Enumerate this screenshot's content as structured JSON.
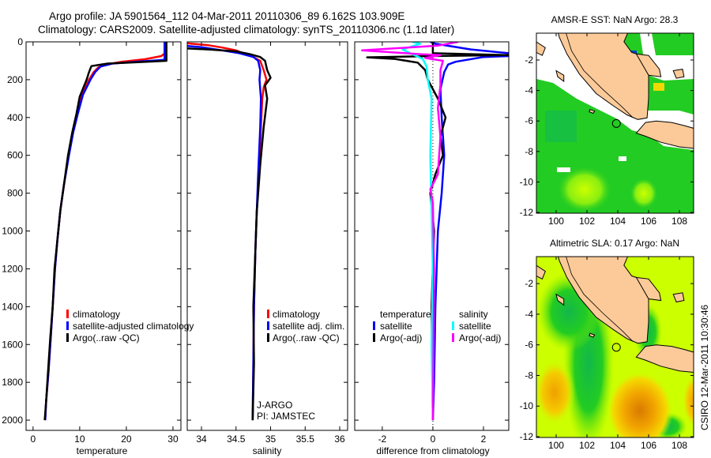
{
  "title": {
    "line1": "Argo profile: JA 5901564_112 04-Mar-2011 20110306_89 6.162S 103.909E",
    "line2": "Climatology: CARS2009. Satellite-adjusted climatology: synTS_20110306.nc (1.1d later)"
  },
  "footer_stamp": "CSIRO 12-Mar-2011 10:30:46",
  "colors": {
    "climatology": "#ff0000",
    "satellite": "#0000ff",
    "argo": "#000000",
    "cyan": "#00ffff",
    "magenta": "#ff00ff",
    "land": "#fcca98"
  },
  "chart_data": [
    {
      "type": "line",
      "id": "temperature",
      "xlabel": "temperature",
      "ylabel": "",
      "xlim": [
        -1.5,
        31.7
      ],
      "ylim": [
        2054,
        0
      ],
      "xticks": [
        "0",
        "10",
        "20",
        "30"
      ],
      "yticks": [
        "0",
        "200",
        "400",
        "600",
        "800",
        "1000",
        "1200",
        "1400",
        "1600",
        "1800",
        "2000"
      ],
      "legend": {
        "placement": "lower-middle",
        "entries": [
          {
            "label": "climatology",
            "color": "#ff0000"
          },
          {
            "label": "satellite-adjusted climatology",
            "color": "#0000ff"
          },
          {
            "label": "Argo(..raw -QC)",
            "color": "#000000"
          }
        ]
      },
      "series": [
        {
          "name": "climatology",
          "color": "#ff0000",
          "points": [
            [
              28.3,
              0
            ],
            [
              28.3,
              60
            ],
            [
              27.5,
              75
            ],
            [
              24,
              92
            ],
            [
              19,
              105
            ],
            [
              16,
              118
            ],
            [
              14,
              135
            ],
            [
              13,
              160
            ],
            [
              12,
              200
            ],
            [
              10.5,
              280
            ],
            [
              9.5,
              380
            ],
            [
              8.5,
              480
            ],
            [
              7.6,
              600
            ],
            [
              6.6,
              760
            ],
            [
              5.8,
              900
            ],
            [
              5.2,
              1050
            ],
            [
              4.7,
              1200
            ],
            [
              4.2,
              1400
            ],
            [
              3.8,
              1560
            ],
            [
              3.3,
              1750
            ],
            [
              2.8,
              1900
            ],
            [
              2.6,
              2000
            ]
          ]
        },
        {
          "name": "satellite",
          "color": "#0000ff",
          "points": [
            [
              28.2,
              0
            ],
            [
              28.2,
              95
            ],
            [
              22,
              105
            ],
            [
              17,
              115
            ],
            [
              14.5,
              130
            ],
            [
              13.3,
              160
            ],
            [
              12.3,
              200
            ],
            [
              10.7,
              280
            ],
            [
              9.6,
              380
            ],
            [
              8.6,
              480
            ],
            [
              7.7,
              600
            ],
            [
              6.6,
              760
            ],
            [
              5.8,
              900
            ],
            [
              5.2,
              1050
            ],
            [
              4.7,
              1200
            ],
            [
              4.2,
              1400
            ],
            [
              3.8,
              1560
            ],
            [
              3.3,
              1750
            ],
            [
              2.8,
              1900
            ],
            [
              2.6,
              2000
            ]
          ]
        },
        {
          "name": "argo",
          "color": "#000000",
          "points": [
            [
              28.6,
              0
            ],
            [
              28.6,
              100
            ],
            [
              22,
              108
            ],
            [
              16,
              115
            ],
            [
              12.5,
              128
            ],
            [
              12,
              160
            ],
            [
              11.5,
              200
            ],
            [
              10,
              290
            ],
            [
              9.3,
              380
            ],
            [
              8.4,
              480
            ],
            [
              7.5,
              600
            ],
            [
              6.6,
              760
            ],
            [
              5.9,
              880
            ],
            [
              5.2,
              1050
            ],
            [
              4.6,
              1200
            ],
            [
              4.2,
              1400
            ],
            [
              3.7,
              1560
            ],
            [
              3.2,
              1750
            ],
            [
              2.8,
              1900
            ],
            [
              2.5,
              2000
            ]
          ]
        }
      ]
    },
    {
      "type": "line",
      "id": "salinity",
      "xlabel": "salinity",
      "xlim": [
        33.794,
        36.114
      ],
      "ylim": [
        2054,
        0
      ],
      "xticks": [
        "34",
        "34.5",
        "35",
        "35.5",
        "36"
      ],
      "legend": {
        "placement": "lower-middle",
        "entries": [
          {
            "label": "climatology",
            "color": "#ff0000"
          },
          {
            "label": "satellite adj. clim.",
            "color": "#0000ff"
          },
          {
            "label": "Argo(..raw -QC)",
            "color": "#000000"
          }
        ]
      },
      "annotations": [
        "J-ARGO",
        "PI: JAMSTEC"
      ],
      "series": [
        {
          "name": "climatology",
          "color": "#ff0000",
          "points": [
            [
              33.8,
              8
            ],
            [
              34.1,
              18
            ],
            [
              34.3,
              30
            ],
            [
              34.5,
              45
            ],
            [
              34.6,
              60
            ],
            [
              34.75,
              80
            ],
            [
              34.85,
              100
            ],
            [
              34.9,
              150
            ],
            [
              34.94,
              200
            ],
            [
              34.9,
              240
            ],
            [
              34.88,
              300
            ],
            [
              34.86,
              450
            ],
            [
              34.83,
              700
            ],
            [
              34.8,
              900
            ],
            [
              34.78,
              1100
            ],
            [
              34.76,
              1400
            ],
            [
              34.75,
              1700
            ],
            [
              34.74,
              2000
            ]
          ]
        },
        {
          "name": "satellite",
          "color": "#0000ff",
          "points": [
            [
              33.8,
              22
            ],
            [
              34.0,
              28
            ],
            [
              34.3,
              45
            ],
            [
              34.55,
              60
            ],
            [
              34.75,
              80
            ],
            [
              34.82,
              100
            ],
            [
              34.85,
              150
            ],
            [
              34.84,
              200
            ],
            [
              34.86,
              300
            ],
            [
              34.85,
              450
            ],
            [
              34.82,
              700
            ],
            [
              34.8,
              900
            ],
            [
              34.78,
              1100
            ],
            [
              34.76,
              1400
            ],
            [
              34.75,
              1700
            ],
            [
              34.74,
              2000
            ]
          ]
        },
        {
          "name": "argo",
          "color": "#000000",
          "points": [
            [
              33.8,
              35
            ],
            [
              34.1,
              40
            ],
            [
              34.5,
              50
            ],
            [
              34.7,
              65
            ],
            [
              34.85,
              80
            ],
            [
              34.92,
              100
            ],
            [
              34.95,
              150
            ],
            [
              35.0,
              190
            ],
            [
              34.92,
              230
            ],
            [
              34.95,
              300
            ],
            [
              34.9,
              450
            ],
            [
              34.85,
              650
            ],
            [
              34.8,
              900
            ],
            [
              34.78,
              1100
            ],
            [
              34.75,
              1400
            ],
            [
              34.76,
              1700
            ],
            [
              34.74,
              2000
            ]
          ]
        }
      ]
    },
    {
      "type": "line",
      "id": "difference",
      "xlabel": "difference from climatology",
      "xlim": [
        -3.09,
        3.0
      ],
      "ylim": [
        2054,
        0
      ],
      "xticks": [
        "-2",
        "0",
        "2"
      ],
      "legend": {
        "placement": "lower-middle",
        "temperature_header": "temperature",
        "salinity_header": "salinity",
        "entries": [
          {
            "label": "satellite",
            "color": "#0000ff",
            "group": "temperature"
          },
          {
            "label": "Argo(-adj)",
            "color": "#000000",
            "group": "temperature"
          },
          {
            "label": "satellite",
            "color": "#00ffff",
            "group": "salinity"
          },
          {
            "label": "Argo(-adj)",
            "color": "#ff00ff",
            "group": "salinity"
          }
        ]
      },
      "series": [
        {
          "name": "temp satellite",
          "color": "#0000ff",
          "points": [
            [
              -0.1,
              0
            ],
            [
              0.1,
              10
            ],
            [
              1.5,
              40
            ],
            [
              3.0,
              60
            ],
            [
              3.0,
              75
            ],
            [
              2.0,
              80
            ],
            [
              0.9,
              105
            ],
            [
              0.6,
              120
            ],
            [
              0.45,
              160
            ],
            [
              0.3,
              250
            ],
            [
              0.35,
              400
            ],
            [
              0.45,
              600
            ],
            [
              0.35,
              800
            ],
            [
              0.2,
              1000
            ],
            [
              0.1,
              1400
            ],
            [
              0.05,
              1800
            ],
            [
              0.0,
              2000
            ]
          ]
        },
        {
          "name": "temp argo",
          "color": "#000000",
          "points": [
            [
              0,
              0
            ],
            [
              0,
              60
            ],
            [
              3.0,
              70
            ],
            [
              0.5,
              74
            ],
            [
              -2.6,
              82
            ],
            [
              -1.5,
              90
            ],
            [
              -0.6,
              110
            ],
            [
              -0.3,
              150
            ],
            [
              -0.2,
              200
            ],
            [
              0.2,
              300
            ],
            [
              0.5,
              400
            ],
            [
              0.3,
              500
            ],
            [
              0.4,
              600
            ],
            [
              0.1,
              700
            ],
            [
              -0.1,
              800
            ],
            [
              0.05,
              1000
            ],
            [
              -0.05,
              1400
            ],
            [
              0.0,
              2000
            ]
          ]
        },
        {
          "name": "sal satellite",
          "color": "#00ffff",
          "points": [
            [
              -0.8,
              0
            ],
            [
              -0.5,
              10
            ],
            [
              -1.2,
              40
            ],
            [
              -0.9,
              60
            ],
            [
              -0.4,
              90
            ],
            [
              -0.25,
              130
            ],
            [
              -0.2,
              200
            ],
            [
              -0.05,
              300
            ],
            [
              -0.1,
              600
            ],
            [
              -0.05,
              900
            ],
            [
              0.0,
              1200
            ],
            [
              -0.05,
              1600
            ],
            [
              0.0,
              2000
            ]
          ]
        },
        {
          "name": "sal argo",
          "color": "#ff00ff",
          "points": [
            [
              1.0,
              0
            ],
            [
              0.2,
              20
            ],
            [
              -2.8,
              45
            ],
            [
              -0.5,
              65
            ],
            [
              0.3,
              70
            ],
            [
              -0.3,
              85
            ],
            [
              0.4,
              100
            ],
            [
              0.3,
              150
            ],
            [
              0.3,
              230
            ],
            [
              0.2,
              350
            ],
            [
              0.3,
              500
            ],
            [
              0.2,
              700
            ],
            [
              -0.1,
              780
            ],
            [
              0.0,
              850
            ],
            [
              0.05,
              1200
            ],
            [
              0.0,
              2000
            ]
          ]
        }
      ]
    },
    {
      "type": "heatmap",
      "id": "sst-map",
      "title": "AMSR-E SST: NaN Argo: 28.3",
      "xlim": [
        98.72,
        108.92
      ],
      "ylim": [
        -12.05,
        -0.24
      ],
      "xticks": [
        "100",
        "102",
        "104",
        "106",
        "108"
      ],
      "yticks": [
        "-2",
        "-4",
        "-6",
        "-8",
        "-10",
        "-12"
      ],
      "marker": {
        "lon": 103.909,
        "lat": -6.162
      }
    },
    {
      "type": "heatmap",
      "id": "sla-map",
      "title": "Altimetric SLA: 0.17 Argo: NaN",
      "xlim": [
        98.72,
        108.92
      ],
      "ylim": [
        -12.05,
        -0.24
      ],
      "xticks": [
        "100",
        "102",
        "104",
        "106",
        "108"
      ],
      "yticks": [
        "-2",
        "-4",
        "-6",
        "-8",
        "-10",
        "-12"
      ],
      "marker": {
        "lon": 103.909,
        "lat": -6.162
      }
    }
  ]
}
